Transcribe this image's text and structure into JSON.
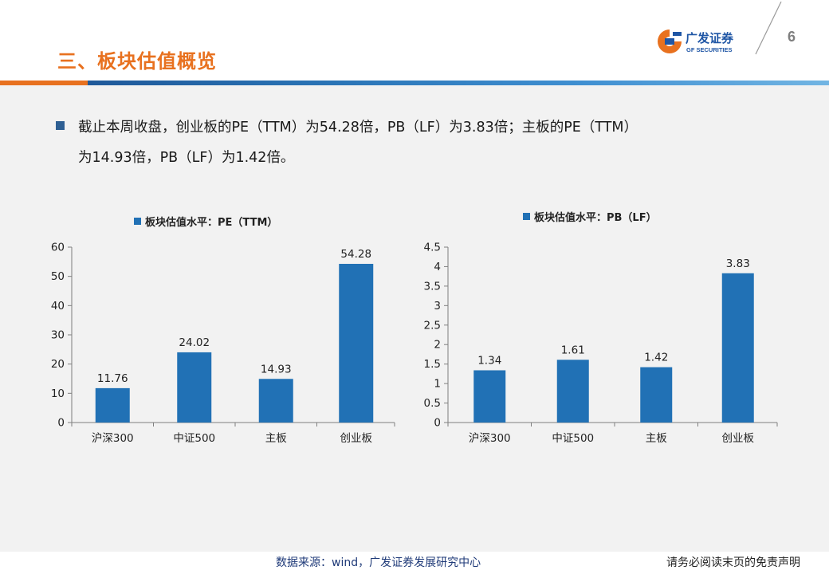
{
  "header": {
    "title": "三、板块估值概览",
    "page_number": "6",
    "logo_brand": "广发证券",
    "logo_en": "GF SECURITIES"
  },
  "summary": {
    "line1": "截止本周收盘，创业板的PE（TTM）为54.28倍，PB（LF）为3.83倍；主板的PE（TTM）",
    "line2": "为14.93倍，PB（LF）为1.42倍。"
  },
  "colors": {
    "bar": "#2171b5",
    "title": "#e8711f",
    "axis": "#7f7f7f"
  },
  "chart_data": [
    {
      "type": "bar",
      "title": "板块估值水平：PE（TTM）",
      "categories": [
        "沪深300",
        "中证500",
        "主板",
        "创业板"
      ],
      "values": [
        11.76,
        24.02,
        14.93,
        54.28
      ],
      "value_labels": [
        "11.76",
        "24.02",
        "14.93",
        "54.28"
      ],
      "ylim": [
        0,
        60
      ],
      "yticks": [
        "0",
        "10",
        "20",
        "30",
        "40",
        "50",
        "60"
      ],
      "xlabel": "",
      "ylabel": "",
      "legend": "top-center"
    },
    {
      "type": "bar",
      "title": "板块估值水平：PB（LF）",
      "categories": [
        "沪深300",
        "中证500",
        "主板",
        "创业板"
      ],
      "values": [
        1.34,
        1.61,
        1.42,
        3.83
      ],
      "value_labels": [
        "1.34",
        "1.61",
        "1.42",
        "3.83"
      ],
      "ylim": [
        0,
        4.5
      ],
      "yticks": [
        "0",
        "0.5",
        "1",
        "1.5",
        "2",
        "2.5",
        "3",
        "3.5",
        "4",
        "4.5"
      ],
      "xlabel": "",
      "ylabel": "",
      "legend": "top-center"
    }
  ],
  "footer": {
    "source": "数据来源：wind，广发证券发展研究中心",
    "disclaimer": "请务必阅读末页的免责声明"
  }
}
